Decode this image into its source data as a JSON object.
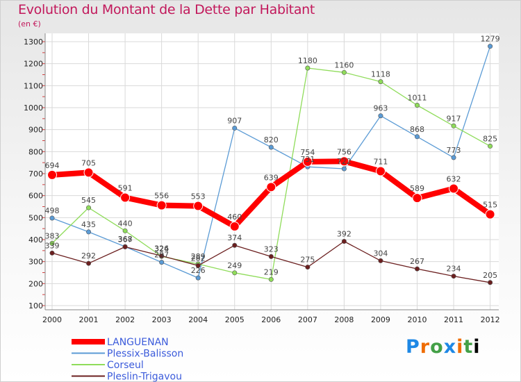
{
  "chart_data": {
    "type": "line",
    "title": "Evolution du Montant de la Dette par Habitant",
    "subtitle": "(en €)",
    "x": [
      "2000",
      "2001",
      "2002",
      "2003",
      "2004",
      "2005",
      "2006",
      "2007",
      "2008",
      "2009",
      "2010",
      "2011",
      "2012"
    ],
    "ylim": [
      100,
      1300
    ],
    "yticks": [
      100,
      200,
      300,
      400,
      500,
      600,
      700,
      800,
      900,
      1000,
      1100,
      1200,
      1300
    ],
    "grid": true,
    "legend_position": "bottom-left",
    "series": [
      {
        "name": "LANGUENAN",
        "color": "#ff0000",
        "values": [
          694,
          705,
          591,
          556,
          553,
          460,
          639,
          754,
          756,
          711,
          589,
          632,
          515
        ]
      },
      {
        "name": "Plessix-Balisson",
        "color": "#5b9bd5",
        "values": [
          498,
          435,
          368,
          297,
          226,
          907,
          820,
          731,
          722,
          963,
          868,
          773,
          1279
        ]
      },
      {
        "name": "Corseul",
        "color": "#8fdc5a",
        "values": [
          383,
          545,
          440,
          324,
          289,
          249,
          219,
          1180,
          1160,
          1118,
          1011,
          917,
          825
        ]
      },
      {
        "name": "Pleslin-Trigavou",
        "color": "#6b1f1f",
        "values": [
          339,
          292,
          367,
          326,
          282,
          374,
          323,
          275,
          392,
          304,
          267,
          234,
          205
        ]
      }
    ]
  },
  "brand": {
    "letters": [
      "P",
      "r",
      "o",
      "x",
      "i",
      "t",
      "i"
    ]
  }
}
